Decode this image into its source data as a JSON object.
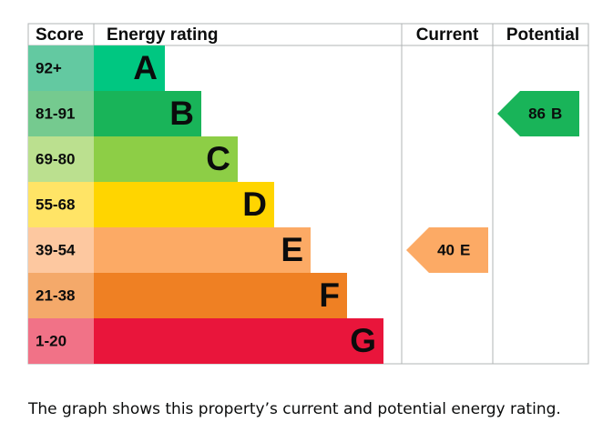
{
  "headers": {
    "score": "Score",
    "rating": "Energy rating",
    "current": "Current",
    "potential": "Potential"
  },
  "rows": [
    {
      "score": "92+",
      "band": "A",
      "color": "#00c781",
      "score_color": "#63c9a1"
    },
    {
      "score": "81-91",
      "band": "B",
      "color": "#19b459",
      "score_color": "#75ca8f"
    },
    {
      "score": "69-80",
      "band": "C",
      "color": "#8dce46",
      "score_color": "#bbe08f"
    },
    {
      "score": "55-68",
      "band": "D",
      "color": "#ffd500",
      "score_color": "#ffe466"
    },
    {
      "score": "39-54",
      "band": "E",
      "color": "#fcaa65",
      "score_color": "#fdc8a0"
    },
    {
      "score": "21-38",
      "band": "F",
      "color": "#ef8023",
      "score_color": "#f4a96a"
    },
    {
      "score": "1-20",
      "band": "G",
      "color": "#e9153b",
      "score_color": "#f17287"
    }
  ],
  "current": {
    "value": 40,
    "band": "E"
  },
  "potential": {
    "value": 86,
    "band": "B"
  },
  "caption": "The graph shows this property’s current and potential energy rating."
}
